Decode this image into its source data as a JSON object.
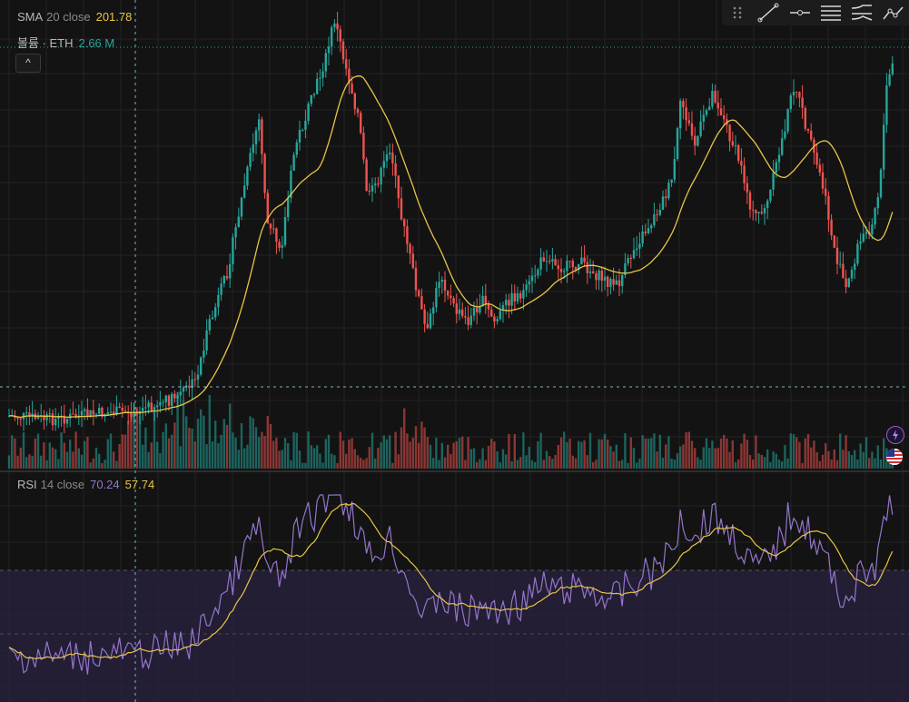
{
  "sma": {
    "name": "SMA",
    "params": "20 close",
    "value": "201.78"
  },
  "volume": {
    "name": "볼륨 · ETH",
    "value": "2.66 M"
  },
  "rsi": {
    "name": "RSI",
    "params": "14 close",
    "value": "70.24",
    "ma_value": "57.74"
  },
  "colors": {
    "up": "#26a69a",
    "down": "#ef5350",
    "sma": "#e8c547",
    "rsi": "#9575cd",
    "band": "#2a2340"
  },
  "toolbar": {
    "icons": [
      "drag-handle-icon",
      "trend-line-icon",
      "horizontal-ray-icon",
      "parallel-channel-icon",
      "fib-retracement-icon",
      "path-icon"
    ]
  },
  "collapse_label": "^"
}
